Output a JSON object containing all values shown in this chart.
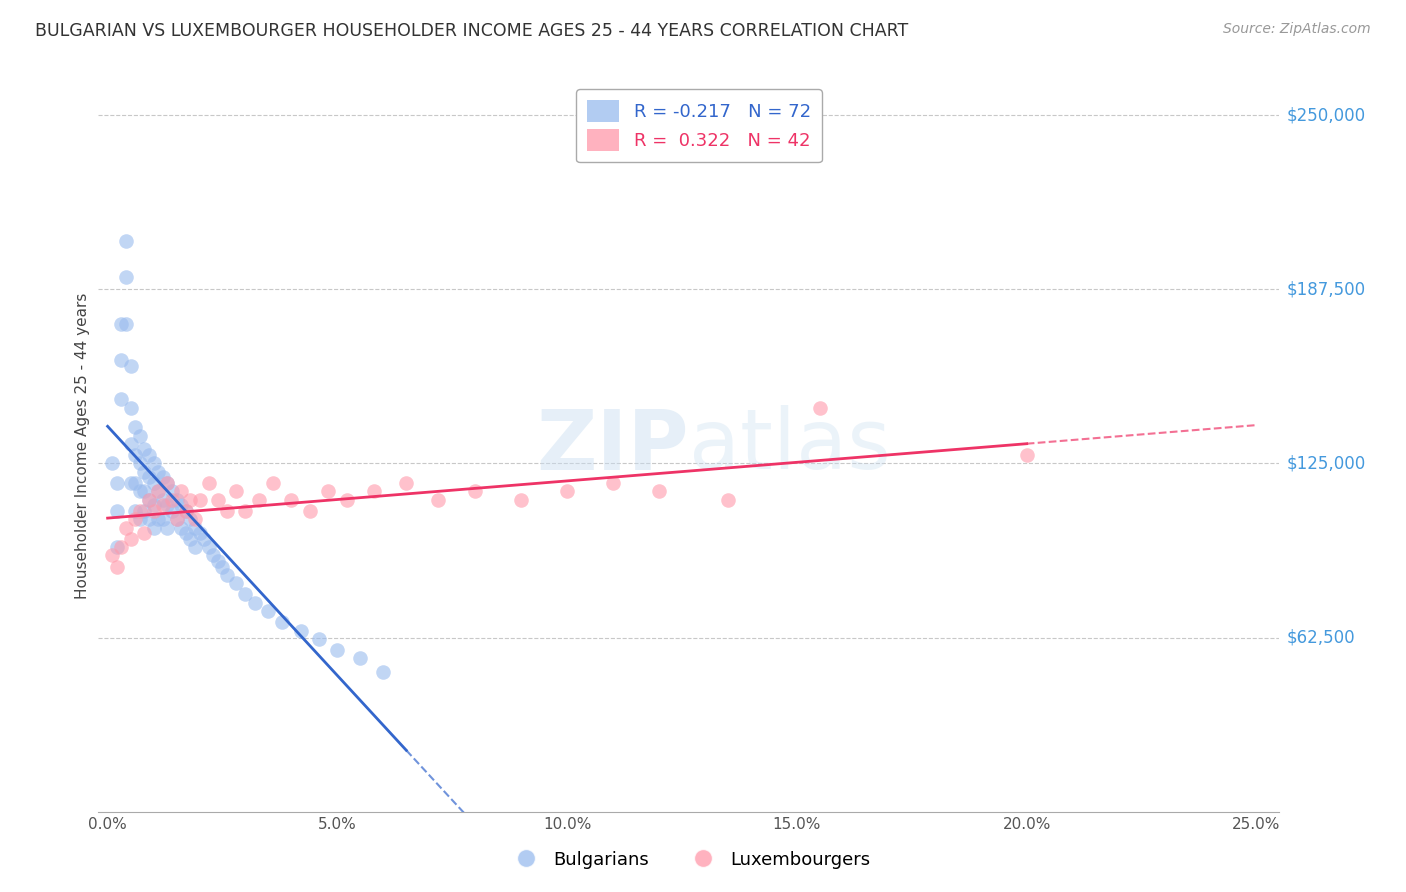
{
  "title": "BULGARIAN VS LUXEMBOURGER HOUSEHOLDER INCOME AGES 25 - 44 YEARS CORRELATION CHART",
  "source": "Source: ZipAtlas.com",
  "ylabel": "Householder Income Ages 25 - 44 years",
  "xlabel_ticks": [
    "0.0%",
    "5.0%",
    "10.0%",
    "15.0%",
    "20.0%",
    "25.0%"
  ],
  "xlabel_vals": [
    0.0,
    0.05,
    0.1,
    0.15,
    0.2,
    0.25
  ],
  "ytick_labels": [
    "$62,500",
    "$125,000",
    "$187,500",
    "$250,000"
  ],
  "ytick_vals": [
    62500,
    125000,
    187500,
    250000
  ],
  "ylim": [
    0,
    262500
  ],
  "xlim": [
    -0.002,
    0.255
  ],
  "bg_color": "#ffffff",
  "grid_color": "#c8c8c8",
  "legend_R1": "-0.217",
  "legend_N1": "72",
  "legend_R2": "0.322",
  "legend_N2": "42",
  "blue_color": "#99bbee",
  "pink_color": "#ff99aa",
  "blue_line_color": "#3366cc",
  "pink_line_color": "#ee3366",
  "label_color": "#4499dd",
  "watermark_color": "#ddeeff",
  "bulgarians_x": [
    0.001,
    0.002,
    0.002,
    0.002,
    0.003,
    0.003,
    0.003,
    0.004,
    0.004,
    0.004,
    0.005,
    0.005,
    0.005,
    0.005,
    0.006,
    0.006,
    0.006,
    0.006,
    0.007,
    0.007,
    0.007,
    0.007,
    0.008,
    0.008,
    0.008,
    0.008,
    0.009,
    0.009,
    0.009,
    0.009,
    0.01,
    0.01,
    0.01,
    0.01,
    0.011,
    0.011,
    0.011,
    0.012,
    0.012,
    0.012,
    0.013,
    0.013,
    0.013,
    0.014,
    0.014,
    0.015,
    0.015,
    0.016,
    0.016,
    0.017,
    0.017,
    0.018,
    0.018,
    0.019,
    0.019,
    0.02,
    0.021,
    0.022,
    0.023,
    0.024,
    0.025,
    0.026,
    0.028,
    0.03,
    0.032,
    0.035,
    0.038,
    0.042,
    0.046,
    0.05,
    0.055,
    0.06
  ],
  "bulgarians_y": [
    125000,
    118000,
    108000,
    95000,
    175000,
    162000,
    148000,
    205000,
    192000,
    175000,
    160000,
    145000,
    132000,
    118000,
    138000,
    128000,
    118000,
    108000,
    135000,
    125000,
    115000,
    105000,
    130000,
    122000,
    115000,
    108000,
    128000,
    120000,
    112000,
    105000,
    125000,
    118000,
    110000,
    102000,
    122000,
    115000,
    105000,
    120000,
    112000,
    105000,
    118000,
    110000,
    102000,
    115000,
    108000,
    112000,
    105000,
    110000,
    102000,
    108000,
    100000,
    105000,
    98000,
    102000,
    95000,
    100000,
    98000,
    95000,
    92000,
    90000,
    88000,
    85000,
    82000,
    78000,
    75000,
    72000,
    68000,
    65000,
    62000,
    58000,
    55000,
    50000
  ],
  "luxembourgers_x": [
    0.001,
    0.002,
    0.003,
    0.004,
    0.005,
    0.006,
    0.007,
    0.008,
    0.009,
    0.01,
    0.011,
    0.012,
    0.013,
    0.014,
    0.015,
    0.016,
    0.017,
    0.018,
    0.019,
    0.02,
    0.022,
    0.024,
    0.026,
    0.028,
    0.03,
    0.033,
    0.036,
    0.04,
    0.044,
    0.048,
    0.052,
    0.058,
    0.065,
    0.072,
    0.08,
    0.09,
    0.1,
    0.11,
    0.12,
    0.135,
    0.155,
    0.2
  ],
  "luxembourgers_y": [
    92000,
    88000,
    95000,
    102000,
    98000,
    105000,
    108000,
    100000,
    112000,
    108000,
    115000,
    110000,
    118000,
    112000,
    105000,
    115000,
    108000,
    112000,
    105000,
    112000,
    118000,
    112000,
    108000,
    115000,
    108000,
    112000,
    118000,
    112000,
    108000,
    115000,
    112000,
    115000,
    118000,
    112000,
    115000,
    112000,
    115000,
    118000,
    115000,
    112000,
    145000,
    128000
  ]
}
